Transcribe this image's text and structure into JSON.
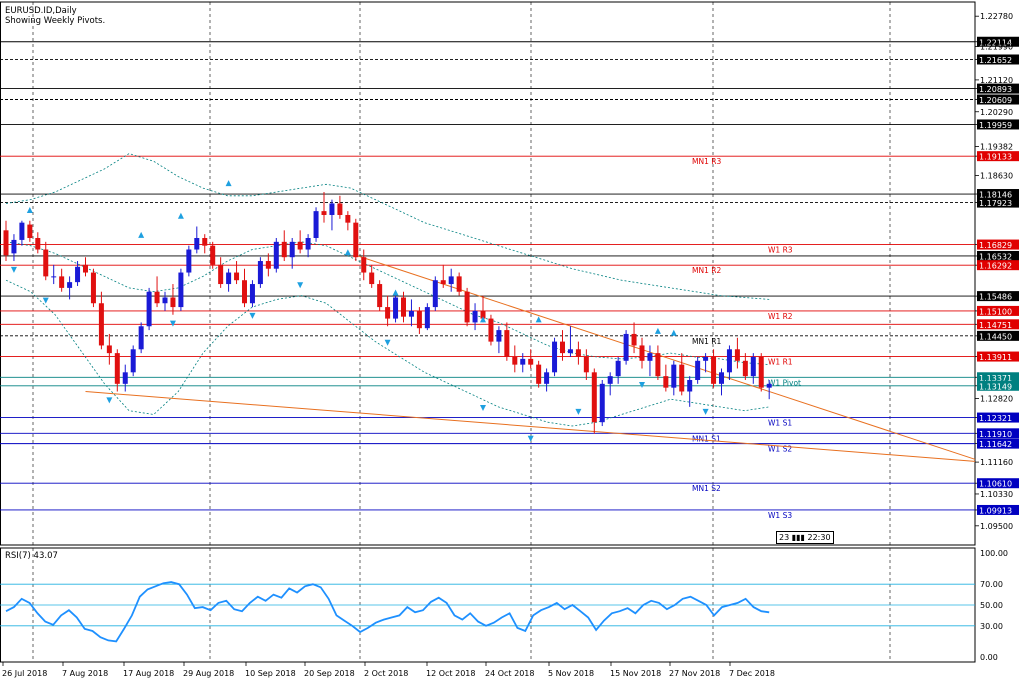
{
  "header": {
    "symbol": "EURUSD.ID,Daily",
    "subtitle": "Showing Weekly Pivots."
  },
  "colors": {
    "grid": "#000000",
    "bull": "#1a1ad6",
    "bear": "#e01010",
    "pivot_red": "#e00000",
    "pivot_blue": "#0000c0",
    "pivot_teal": "#008080",
    "band": "#008080",
    "trend": "#e87020",
    "rsi": "#1e90ff",
    "rsi_level": "#20b0e0",
    "fractal": "#1ea0e0"
  },
  "chart_data": [
    {
      "type": "candlestick",
      "title": "EURUSD.ID,Daily",
      "subtitle": "Showing Weekly Pivots.",
      "ylim": [
        1.09,
        1.2315
      ],
      "y_ticks": [
        "1.22780",
        "1.22114",
        "1.21990",
        "1.21652",
        "1.21120",
        "1.20893",
        "1.20609",
        "1.20290",
        "1.19959",
        "1.19382",
        "1.19133",
        "1.18630",
        "1.18146",
        "1.17923",
        "1.16829",
        "1.16532",
        "1.16292",
        "1.15486",
        "1.15100",
        "1.14751",
        "1.14450",
        "1.13911",
        "1.13371",
        "1.13149",
        "1.12820",
        "1.12321",
        "1.11910",
        "1.11642",
        "1.11160",
        "1.10610",
        "1.10330",
        "1.09913",
        "1.09500"
      ],
      "x_labels": [
        "26 Jul 2018",
        "7 Aug 2018",
        "17 Aug 2018",
        "29 Aug 2018",
        "10 Sep 2018",
        "20 Sep 2018",
        "2 Oct 2018",
        "12 Oct 2018",
        "24 Oct 2018",
        "5 Nov 2018",
        "15 Nov 2018",
        "27 Nov 2018",
        "7 Dec 2018"
      ],
      "pivot_levels": [
        {
          "label": "",
          "price": 1.22114,
          "color": "#000000",
          "dash": false,
          "price_label": "1.22114"
        },
        {
          "label": "",
          "price": 1.21652,
          "color": "#000000",
          "dash": true,
          "price_label": "1.21652"
        },
        {
          "label": "",
          "price": 1.20893,
          "color": "#000000",
          "dash": false,
          "price_label": "1.20893"
        },
        {
          "label": "",
          "price": 1.20609,
          "color": "#000000",
          "dash": true,
          "price_label": "1.20609"
        },
        {
          "label": "",
          "price": 1.19959,
          "color": "#000000",
          "dash": false,
          "price_label": "1.19959"
        },
        {
          "label": "MN1  R3",
          "price": 1.19133,
          "color": "#e00000",
          "dash": false,
          "price_label": "1.19133"
        },
        {
          "label": "",
          "price": 1.18146,
          "color": "#000000",
          "dash": false,
          "price_label": "1.18146"
        },
        {
          "label": "",
          "price": 1.17923,
          "color": "#000000",
          "dash": true,
          "price_label": "1.17923"
        },
        {
          "label": "W1  R3",
          "price": 1.16829,
          "color": "#e00000",
          "dash": false,
          "price_label": "1.16829"
        },
        {
          "label": "",
          "price": 1.16532,
          "color": "#000000",
          "dash": false,
          "price_label": "1.16532"
        },
        {
          "label": "MN1  R2",
          "price": 1.16292,
          "color": "#e00000",
          "dash": false,
          "price_label": "1.16292"
        },
        {
          "label": "",
          "price": 1.15486,
          "color": "#000000",
          "dash": false,
          "price_label": "1.15486"
        },
        {
          "label": "W1  R2",
          "price": 1.151,
          "color": "#e00000",
          "dash": false,
          "price_label": "1.15100"
        },
        {
          "label": "",
          "price": 1.14751,
          "color": "#e00000",
          "dash": false,
          "price_label": "1.14751"
        },
        {
          "label": "MN1  R1",
          "price": 1.1445,
          "color": "#000000",
          "dash": true,
          "price_label": "1.14450"
        },
        {
          "label": "W1  R1",
          "price": 1.13911,
          "color": "#e00000",
          "dash": false,
          "price_label": "1.13911"
        },
        {
          "label": "W1  Pivot",
          "price": 1.13371,
          "color": "#008080",
          "dash": false,
          "price_label": "1.13371"
        },
        {
          "label": "",
          "price": 1.13149,
          "color": "#008080",
          "dash": false,
          "price_label": "1.13149"
        },
        {
          "label": "W1  S1",
          "price": 1.12321,
          "color": "#0000c0",
          "dash": false,
          "price_label": "1.12321"
        },
        {
          "label": "MN1  S1",
          "price": 1.1191,
          "color": "#0000c0",
          "dash": false,
          "price_label": "1.11910"
        },
        {
          "label": "W1  S2",
          "price": 1.11642,
          "color": "#0000c0",
          "dash": false,
          "price_label": "1.11642"
        },
        {
          "label": "MN1  S2",
          "price": 1.1061,
          "color": "#0000c0",
          "dash": false,
          "price_label": "1.10610"
        },
        {
          "label": "W1  S3",
          "price": 1.09913,
          "color": "#0000c0",
          "dash": false,
          "price_label": "1.09913"
        }
      ],
      "candles": [
        [
          1.172,
          1.1745,
          1.164,
          1.1655
        ],
        [
          1.166,
          1.171,
          1.164,
          1.1695
        ],
        [
          1.1695,
          1.1745,
          1.168,
          1.174
        ],
        [
          1.1735,
          1.1745,
          1.169,
          1.17
        ],
        [
          1.17,
          1.1715,
          1.166,
          1.167
        ],
        [
          1.167,
          1.169,
          1.159,
          1.16
        ],
        [
          1.16,
          1.163,
          1.158,
          1.16
        ],
        [
          1.16,
          1.162,
          1.156,
          1.157
        ],
        [
          1.157,
          1.16,
          1.154,
          1.1585
        ],
        [
          1.1585,
          1.164,
          1.1575,
          1.1625
        ],
        [
          1.163,
          1.165,
          1.16,
          1.161
        ],
        [
          1.161,
          1.162,
          1.152,
          1.153
        ],
        [
          1.153,
          1.156,
          1.141,
          1.142
        ],
        [
          1.142,
          1.145,
          1.137,
          1.14
        ],
        [
          1.14,
          1.141,
          1.13,
          1.132
        ],
        [
          1.132,
          1.137,
          1.13,
          1.135
        ],
        [
          1.135,
          1.142,
          1.134,
          1.141
        ],
        [
          1.141,
          1.148,
          1.14,
          1.147
        ],
        [
          1.147,
          1.157,
          1.146,
          1.156
        ],
        [
          1.156,
          1.16,
          1.152,
          1.153
        ],
        [
          1.153,
          1.156,
          1.151,
          1.1545
        ],
        [
          1.1545,
          1.158,
          1.15,
          1.152
        ],
        [
          1.152,
          1.162,
          1.151,
          1.161
        ],
        [
          1.161,
          1.168,
          1.16,
          1.167
        ],
        [
          1.167,
          1.173,
          1.166,
          1.17
        ],
        [
          1.17,
          1.171,
          1.166,
          1.168
        ],
        [
          1.168,
          1.169,
          1.162,
          1.163
        ],
        [
          1.163,
          1.165,
          1.157,
          1.158
        ],
        [
          1.158,
          1.162,
          1.156,
          1.161
        ],
        [
          1.161,
          1.164,
          1.158,
          1.159
        ],
        [
          1.159,
          1.162,
          1.152,
          1.153
        ],
        [
          1.153,
          1.159,
          1.152,
          1.158
        ],
        [
          1.158,
          1.165,
          1.157,
          1.164
        ],
        [
          1.164,
          1.166,
          1.16,
          1.162
        ],
        [
          1.162,
          1.17,
          1.161,
          1.169
        ],
        [
          1.169,
          1.172,
          1.164,
          1.165
        ],
        [
          1.165,
          1.17,
          1.162,
          1.169
        ],
        [
          1.169,
          1.172,
          1.166,
          1.167
        ],
        [
          1.167,
          1.171,
          1.165,
          1.17
        ],
        [
          1.17,
          1.178,
          1.169,
          1.177
        ],
        [
          1.177,
          1.182,
          1.174,
          1.176
        ],
        [
          1.176,
          1.18,
          1.172,
          1.179
        ],
        [
          1.179,
          1.181,
          1.175,
          1.176
        ],
        [
          1.176,
          1.177,
          1.172,
          1.174
        ],
        [
          1.174,
          1.175,
          1.164,
          1.165
        ],
        [
          1.165,
          1.167,
          1.159,
          1.161
        ],
        [
          1.161,
          1.163,
          1.157,
          1.158
        ],
        [
          1.158,
          1.159,
          1.151,
          1.152
        ],
        [
          1.152,
          1.155,
          1.147,
          1.149
        ],
        [
          1.149,
          1.156,
          1.148,
          1.1545
        ],
        [
          1.1545,
          1.156,
          1.148,
          1.1495
        ],
        [
          1.1495,
          1.154,
          1.147,
          1.151
        ],
        [
          1.151,
          1.152,
          1.145,
          1.1465
        ],
        [
          1.1465,
          1.153,
          1.146,
          1.152
        ],
        [
          1.152,
          1.16,
          1.151,
          1.159
        ],
        [
          1.159,
          1.163,
          1.157,
          1.158
        ],
        [
          1.158,
          1.162,
          1.156,
          1.16
        ],
        [
          1.16,
          1.161,
          1.155,
          1.156
        ],
        [
          1.156,
          1.157,
          1.147,
          1.148
        ],
        [
          1.148,
          1.153,
          1.146,
          1.151
        ],
        [
          1.151,
          1.155,
          1.148,
          1.149
        ],
        [
          1.149,
          1.15,
          1.142,
          1.143
        ],
        [
          1.143,
          1.147,
          1.14,
          1.146
        ],
        [
          1.146,
          1.148,
          1.138,
          1.139
        ],
        [
          1.139,
          1.142,
          1.135,
          1.137
        ],
        [
          1.137,
          1.14,
          1.135,
          1.1385
        ],
        [
          1.1385,
          1.141,
          1.136,
          1.137
        ],
        [
          1.137,
          1.138,
          1.131,
          1.132
        ],
        [
          1.132,
          1.136,
          1.13,
          1.135
        ],
        [
          1.135,
          1.144,
          1.134,
          1.143
        ],
        [
          1.143,
          1.146,
          1.138,
          1.14
        ],
        [
          1.14,
          1.147,
          1.139,
          1.141
        ],
        [
          1.141,
          1.143,
          1.137,
          1.139
        ],
        [
          1.139,
          1.141,
          1.133,
          1.135
        ],
        [
          1.135,
          1.136,
          1.119,
          1.122
        ],
        [
          1.122,
          1.133,
          1.121,
          1.132
        ],
        [
          1.132,
          1.135,
          1.129,
          1.134
        ],
        [
          1.134,
          1.139,
          1.132,
          1.138
        ],
        [
          1.138,
          1.146,
          1.137,
          1.145
        ],
        [
          1.145,
          1.148,
          1.14,
          1.142
        ],
        [
          1.142,
          1.144,
          1.136,
          1.138
        ],
        [
          1.138,
          1.142,
          1.134,
          1.14
        ],
        [
          1.14,
          1.142,
          1.133,
          1.134
        ],
        [
          1.134,
          1.137,
          1.13,
          1.131
        ],
        [
          1.131,
          1.138,
          1.129,
          1.137
        ],
        [
          1.137,
          1.14,
          1.129,
          1.13
        ],
        [
          1.13,
          1.134,
          1.126,
          1.133
        ],
        [
          1.133,
          1.139,
          1.132,
          1.138
        ],
        [
          1.138,
          1.14,
          1.135,
          1.139
        ],
        [
          1.139,
          1.141,
          1.131,
          1.132
        ],
        [
          1.132,
          1.136,
          1.129,
          1.135
        ],
        [
          1.135,
          1.142,
          1.133,
          1.141
        ],
        [
          1.141,
          1.144,
          1.136,
          1.138
        ],
        [
          1.138,
          1.14,
          1.133,
          1.134
        ],
        [
          1.134,
          1.14,
          1.132,
          1.139
        ],
        [
          1.139,
          1.14,
          1.13,
          1.131
        ],
        [
          1.131,
          1.133,
          1.128,
          1.132
        ]
      ],
      "bollinger": {
        "upper": [
          1.179,
          1.18,
          1.182,
          1.185,
          1.188,
          1.192,
          1.19,
          1.186,
          1.183,
          1.181,
          1.181,
          1.182,
          1.183,
          1.184,
          1.183,
          1.18,
          1.177,
          1.174,
          1.172,
          1.17,
          1.168,
          1.166,
          1.164,
          1.162,
          1.1605,
          1.159,
          1.158,
          1.157,
          1.156,
          1.155,
          1.1545,
          1.154
        ],
        "middle": [
          1.169,
          1.168,
          1.166,
          1.163,
          1.16,
          1.157,
          1.156,
          1.157,
          1.16,
          1.164,
          1.167,
          1.168,
          1.169,
          1.168,
          1.165,
          1.162,
          1.159,
          1.156,
          1.153,
          1.15,
          1.148,
          1.145,
          1.142,
          1.14,
          1.139,
          1.1385,
          1.139,
          1.14,
          1.139,
          1.1385,
          1.1375,
          1.137
        ],
        "lower": [
          1.159,
          1.156,
          1.15,
          1.141,
          1.132,
          1.125,
          1.124,
          1.13,
          1.14,
          1.147,
          1.152,
          1.154,
          1.155,
          1.153,
          1.148,
          1.143,
          1.139,
          1.135,
          1.132,
          1.129,
          1.126,
          1.124,
          1.122,
          1.121,
          1.122,
          1.124,
          1.126,
          1.128,
          1.127,
          1.126,
          1.125,
          1.126
        ]
      },
      "trendlines": [
        {
          "from": [
            1.1655,
            44
          ],
          "to": [
            1.13,
            96
          ]
        },
        {
          "from": [
            1.13,
            10
          ],
          "to": [
            1.116,
            96
          ]
        }
      ],
      "fractals_up": [
        [
          3,
          1.176
        ],
        [
          17,
          1.1695
        ],
        [
          22,
          1.1745
        ],
        [
          28,
          1.183
        ],
        [
          43,
          1.165
        ],
        [
          49,
          1.1545
        ],
        [
          60,
          1.1475
        ],
        [
          67,
          1.1475
        ],
        [
          82,
          1.1445
        ],
        [
          84,
          1.144
        ]
      ],
      "fractals_down": [
        [
          1,
          1.163
        ],
        [
          5,
          1.155
        ],
        [
          13,
          1.129
        ],
        [
          21,
          1.149
        ],
        [
          31,
          1.151
        ],
        [
          37,
          1.159
        ],
        [
          48,
          1.144
        ],
        [
          60,
          1.127
        ],
        [
          66,
          1.119
        ],
        [
          72,
          1.126
        ],
        [
          80,
          1.133
        ],
        [
          88,
          1.126
        ]
      ]
    },
    {
      "type": "line",
      "title": "RSI(7) 43.07",
      "ylim": [
        0,
        100
      ],
      "y_ticks": [
        "100.00",
        "70.00",
        "50.00",
        "30.00",
        "0.00"
      ],
      "levels": [
        70,
        50,
        30
      ],
      "values": [
        44,
        48,
        56,
        52,
        42,
        34,
        31,
        40,
        45,
        38,
        27,
        25,
        19,
        16,
        15,
        27,
        40,
        58,
        65,
        68,
        71,
        72,
        70,
        60,
        47,
        48,
        45,
        52,
        54,
        46,
        44,
        52,
        58,
        54,
        60,
        57,
        66,
        62,
        68,
        70,
        67,
        56,
        40,
        35,
        30,
        24,
        28,
        33,
        36,
        38,
        40,
        48,
        43,
        45,
        53,
        57,
        52,
        40,
        36,
        42,
        34,
        30,
        33,
        38,
        42,
        28,
        25,
        40,
        45,
        48,
        52,
        46,
        50,
        44,
        38,
        26,
        35,
        42,
        44,
        47,
        42,
        50,
        54,
        52,
        46,
        50,
        56,
        58,
        54,
        50,
        40,
        48,
        50,
        52,
        56,
        48,
        44,
        43
      ]
    }
  ],
  "rsi_label": "RSI(7) 43.07",
  "time_badge": {
    "left": "23",
    "right": "22:30"
  }
}
